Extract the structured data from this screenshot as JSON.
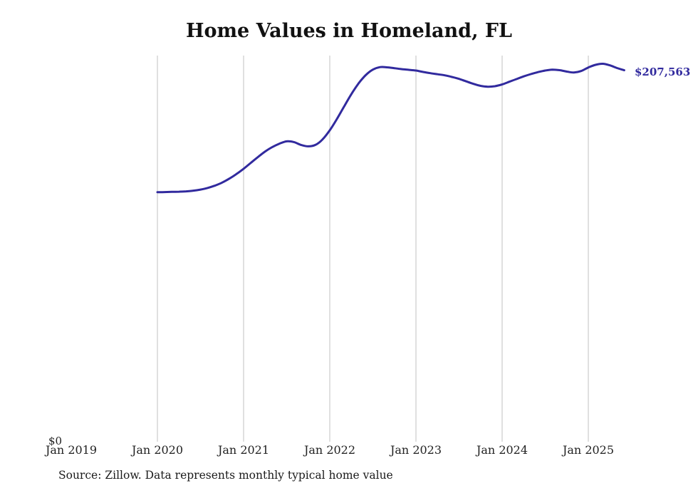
{
  "chart_data": {
    "type": "line",
    "title": "Home Values in Homeland, FL",
    "source_note": "Source: Zillow. Data represents monthly typical home value",
    "end_label": "$207,563",
    "end_value": 207563,
    "line_color": "#312a9e",
    "grid_color": "#cccccc",
    "x_tick_labels": [
      "Jan 2019",
      "Jan 2020",
      "Jan 2021",
      "Jan 2022",
      "Jan 2023",
      "Jan 2024",
      "Jan 2025"
    ],
    "x_tick_years": [
      2019,
      2020,
      2021,
      2022,
      2023,
      2024,
      2025
    ],
    "gridline_years": [
      2020,
      2021,
      2022,
      2023,
      2024,
      2025
    ],
    "y_tick_labels": [
      "$0"
    ],
    "ylim": [
      0,
      215000
    ],
    "xlim": [
      2019.0,
      2025.6
    ],
    "grid": "vertical-only",
    "legend": "none",
    "series": [
      {
        "name": "Monthly typical home value",
        "dates": [
          "2020-01",
          "2020-02",
          "2020-03",
          "2020-04",
          "2020-05",
          "2020-06",
          "2020-07",
          "2020-08",
          "2020-09",
          "2020-10",
          "2020-11",
          "2020-12",
          "2021-01",
          "2021-02",
          "2021-03",
          "2021-04",
          "2021-05",
          "2021-06",
          "2021-07",
          "2021-08",
          "2021-09",
          "2021-10",
          "2021-11",
          "2021-12",
          "2022-01",
          "2022-02",
          "2022-03",
          "2022-04",
          "2022-05",
          "2022-06",
          "2022-07",
          "2022-08",
          "2022-09",
          "2022-10",
          "2022-11",
          "2022-12",
          "2023-01",
          "2023-02",
          "2023-03",
          "2023-04",
          "2023-05",
          "2023-06",
          "2023-07",
          "2023-08",
          "2023-09",
          "2023-10",
          "2023-11",
          "2023-12",
          "2024-01",
          "2024-02",
          "2024-03",
          "2024-04",
          "2024-05",
          "2024-06",
          "2024-07",
          "2024-08",
          "2024-09",
          "2024-10",
          "2024-11",
          "2024-12",
          "2025-01",
          "2025-02",
          "2025-03",
          "2025-04",
          "2025-05",
          "2025-06"
        ],
        "values": [
          139000,
          139100,
          139200,
          139300,
          139500,
          139900,
          140500,
          141400,
          142700,
          144400,
          146600,
          149200,
          152200,
          155500,
          158800,
          161900,
          164400,
          166300,
          167600,
          167200,
          165600,
          164800,
          165600,
          168700,
          173800,
          180200,
          187200,
          194100,
          200100,
          204800,
          207900,
          209300,
          209200,
          208700,
          208200,
          207800,
          207400,
          206600,
          205900,
          205300,
          204700,
          203800,
          202700,
          201300,
          199900,
          198800,
          198300,
          198600,
          199600,
          201100,
          202600,
          204100,
          205400,
          206500,
          207400,
          207900,
          207600,
          206800,
          206300,
          207100,
          209100,
          210600,
          211200,
          210300,
          208800,
          207563
        ]
      }
    ]
  }
}
